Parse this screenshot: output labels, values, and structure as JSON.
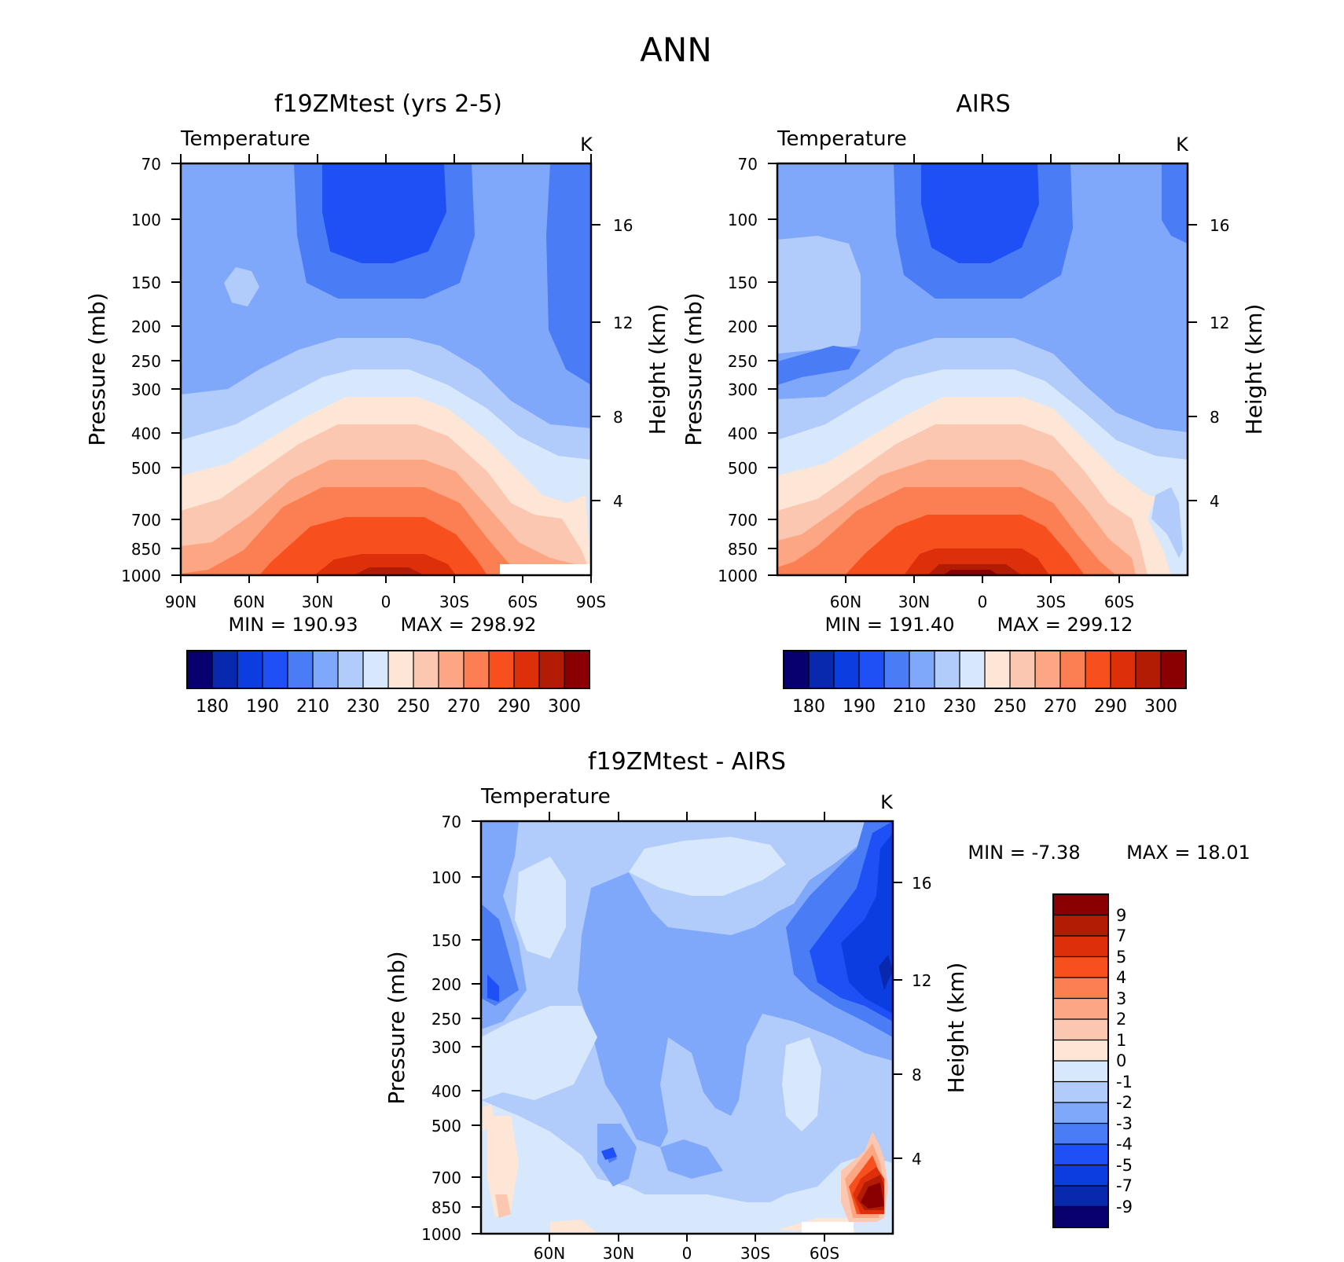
{
  "page_title": "ANN",
  "chart_data": [
    {
      "type": "heatmap",
      "title": "f19ZMtest (yrs 2-5)",
      "variable": "Temperature",
      "units": "K",
      "ylabel": "Pressure (mb)",
      "ylabel_right": "Height (km)",
      "x_ticks": [
        "90N",
        "60N",
        "30N",
        "0",
        "30S",
        "60S",
        "90S"
      ],
      "y_ticks": [
        "70",
        "100",
        "150",
        "200",
        "250",
        "300",
        "400",
        "500",
        "700",
        "850",
        "1000"
      ],
      "height_ticks": [
        "16",
        "12",
        "8",
        "4"
      ],
      "min_label": "MIN = 190.93",
      "max_label": "MAX = 298.92",
      "colorbar_labels": [
        "180",
        "190",
        "210",
        "230",
        "250",
        "270",
        "290",
        "300"
      ]
    },
    {
      "type": "heatmap",
      "title": "AIRS",
      "variable": "Temperature",
      "units": "K",
      "ylabel": "Pressure (mb)",
      "ylabel_right": "Height (km)",
      "x_ticks": [
        "60N",
        "30N",
        "0",
        "30S",
        "60S"
      ],
      "y_ticks": [
        "70",
        "100",
        "150",
        "200",
        "250",
        "300",
        "400",
        "500",
        "700",
        "850",
        "1000"
      ],
      "height_ticks": [
        "16",
        "12",
        "8",
        "4"
      ],
      "min_label": "MIN = 191.40",
      "max_label": "MAX = 299.12",
      "colorbar_labels": [
        "180",
        "190",
        "210",
        "230",
        "250",
        "270",
        "290",
        "300"
      ]
    },
    {
      "type": "heatmap",
      "title": "f19ZMtest - AIRS",
      "variable": "Temperature",
      "units": "K",
      "ylabel": "Pressure (mb)",
      "ylabel_right": "Height (km)",
      "x_ticks": [
        "60N",
        "30N",
        "0",
        "30S",
        "60S"
      ],
      "y_ticks": [
        "70",
        "100",
        "150",
        "200",
        "250",
        "300",
        "400",
        "500",
        "700",
        "850",
        "1000"
      ],
      "height_ticks": [
        "16",
        "12",
        "8",
        "4"
      ],
      "min_label": "MIN = -7.38",
      "max_label": "MAX = 18.01",
      "colorbar_labels": [
        "9",
        "7",
        "5",
        "4",
        "3",
        "2",
        "1",
        "0",
        "-1",
        "-2",
        "-3",
        "-4",
        "-5",
        "-7",
        "-9"
      ]
    }
  ],
  "colors": {
    "abs_scale": [
      "#08006e",
      "#0828ad",
      "#0c3de0",
      "#1f50f5",
      "#4a7cf6",
      "#80a8fa",
      "#b1cbfb",
      "#d8e8fc",
      "#fde6d6",
      "#fcc7b0",
      "#fca684",
      "#fb7f52",
      "#f7501e",
      "#dd300a",
      "#b31c04",
      "#8a0002"
    ],
    "diff_scale": [
      "#8a0002",
      "#b31c04",
      "#dd300a",
      "#f7501e",
      "#fb7f52",
      "#fca684",
      "#fcc7b0",
      "#fde6d6",
      "#d8e8fc",
      "#b1cbfb",
      "#80a8fa",
      "#4a7cf6",
      "#1f50f5",
      "#0c3de0",
      "#0828ad",
      "#08006e"
    ]
  }
}
